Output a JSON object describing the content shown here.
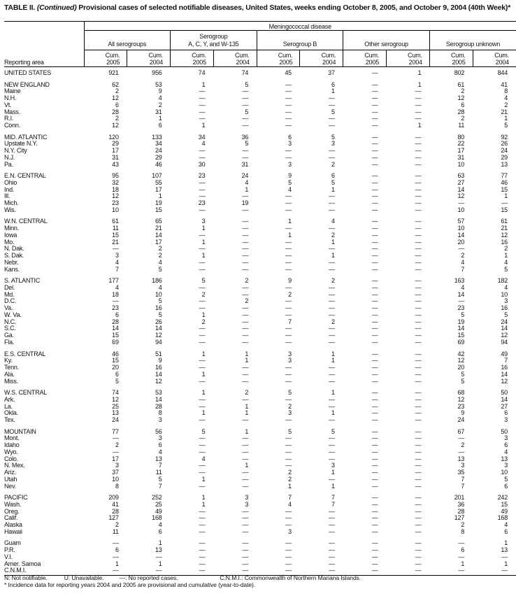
{
  "title": {
    "prefix": "TABLE II. ",
    "italic": "(Continued)",
    "text": " Provisional cases of selected notifiable diseases, United States, weeks ending October 8, 2005, and October 9, 2004 (40th Week)*"
  },
  "header": {
    "disease": "Meningococcal disease",
    "reporting_area": "Reporting area",
    "groups": [
      "All serogroups",
      "Serogroup A, C, Y, and W-135",
      "Serogroup B",
      "Other serogroup",
      "Serogroup unknown"
    ],
    "group_lines": [
      [
        "All serogroups"
      ],
      [
        "Serogroup",
        "A, C, Y, and W-135"
      ],
      [
        "Serogroup B"
      ],
      [
        "Other serogroup"
      ],
      [
        "Serogroup unknown"
      ]
    ],
    "cum_label": "Cum.",
    "years": [
      "2005",
      "2004"
    ]
  },
  "rows": [
    {
      "area": "UNITED STATES",
      "g": 1,
      "v": [
        "921",
        "956",
        "74",
        "74",
        "45",
        "37",
        "—",
        "1",
        "802",
        "844"
      ]
    },
    {
      "area": "NEW ENGLAND",
      "g": 1,
      "v": [
        "62",
        "53",
        "1",
        "5",
        "—",
        "6",
        "—",
        "1",
        "61",
        "41"
      ]
    },
    {
      "area": "Maine",
      "v": [
        "2",
        "9",
        "—",
        "—",
        "—",
        "1",
        "—",
        "—",
        "2",
        "8"
      ]
    },
    {
      "area": "N.H.",
      "v": [
        "12",
        "4",
        "—",
        "—",
        "—",
        "—",
        "—",
        "—",
        "12",
        "4"
      ]
    },
    {
      "area": "Vt.",
      "v": [
        "6",
        "2",
        "—",
        "—",
        "—",
        "—",
        "—",
        "—",
        "6",
        "2"
      ]
    },
    {
      "area": "Mass.",
      "v": [
        "28",
        "31",
        "—",
        "5",
        "—",
        "5",
        "—",
        "—",
        "28",
        "21"
      ]
    },
    {
      "area": "R.I.",
      "v": [
        "2",
        "1",
        "—",
        "—",
        "—",
        "—",
        "—",
        "—",
        "2",
        "1"
      ]
    },
    {
      "area": "Conn.",
      "v": [
        "12",
        "6",
        "1",
        "—",
        "—",
        "—",
        "—",
        "1",
        "11",
        "5"
      ]
    },
    {
      "area": "MID. ATLANTIC",
      "g": 1,
      "v": [
        "120",
        "133",
        "34",
        "36",
        "6",
        "5",
        "—",
        "—",
        "80",
        "92"
      ]
    },
    {
      "area": "Upstate N.Y.",
      "v": [
        "29",
        "34",
        "4",
        "5",
        "3",
        "3",
        "—",
        "—",
        "22",
        "26"
      ]
    },
    {
      "area": "N.Y. City",
      "v": [
        "17",
        "24",
        "—",
        "—",
        "—",
        "—",
        "—",
        "—",
        "17",
        "24"
      ]
    },
    {
      "area": "N.J.",
      "v": [
        "31",
        "29",
        "—",
        "—",
        "—",
        "—",
        "—",
        "—",
        "31",
        "29"
      ]
    },
    {
      "area": "Pa.",
      "v": [
        "43",
        "46",
        "30",
        "31",
        "3",
        "2",
        "—",
        "—",
        "10",
        "13"
      ]
    },
    {
      "area": "E.N. CENTRAL",
      "g": 1,
      "v": [
        "95",
        "107",
        "23",
        "24",
        "9",
        "6",
        "—",
        "—",
        "63",
        "77"
      ]
    },
    {
      "area": "Ohio",
      "v": [
        "32",
        "55",
        "—",
        "4",
        "5",
        "5",
        "—",
        "—",
        "27",
        "46"
      ]
    },
    {
      "area": "Ind.",
      "v": [
        "18",
        "17",
        "—",
        "1",
        "4",
        "1",
        "—",
        "—",
        "14",
        "15"
      ]
    },
    {
      "area": "Ill.",
      "v": [
        "12",
        "1",
        "—",
        "—",
        "—",
        "—",
        "—",
        "—",
        "12",
        "1"
      ]
    },
    {
      "area": "Mich.",
      "v": [
        "23",
        "19",
        "23",
        "19",
        "—",
        "—",
        "—",
        "—",
        "—",
        "—"
      ]
    },
    {
      "area": "Wis.",
      "v": [
        "10",
        "15",
        "—",
        "—",
        "—",
        "—",
        "—",
        "—",
        "10",
        "15"
      ]
    },
    {
      "area": "W.N. CENTRAL",
      "g": 1,
      "v": [
        "61",
        "65",
        "3",
        "—",
        "1",
        "4",
        "—",
        "—",
        "57",
        "61"
      ]
    },
    {
      "area": "Minn.",
      "v": [
        "11",
        "21",
        "1",
        "—",
        "—",
        "—",
        "—",
        "—",
        "10",
        "21"
      ]
    },
    {
      "area": "Iowa",
      "v": [
        "15",
        "14",
        "—",
        "—",
        "1",
        "2",
        "—",
        "—",
        "14",
        "12"
      ]
    },
    {
      "area": "Mo.",
      "v": [
        "21",
        "17",
        "1",
        "—",
        "—",
        "1",
        "—",
        "—",
        "20",
        "16"
      ]
    },
    {
      "area": "N. Dak.",
      "v": [
        "—",
        "2",
        "—",
        "—",
        "—",
        "—",
        "—",
        "—",
        "—",
        "2"
      ]
    },
    {
      "area": "S. Dak.",
      "v": [
        "3",
        "2",
        "1",
        "—",
        "—",
        "1",
        "—",
        "—",
        "2",
        "1"
      ]
    },
    {
      "area": "Nebr.",
      "v": [
        "4",
        "4",
        "—",
        "—",
        "—",
        "—",
        "—",
        "—",
        "4",
        "4"
      ]
    },
    {
      "area": "Kans.",
      "v": [
        "7",
        "5",
        "—",
        "—",
        "—",
        "—",
        "—",
        "—",
        "7",
        "5"
      ]
    },
    {
      "area": "S. ATLANTIC",
      "g": 1,
      "v": [
        "177",
        "186",
        "5",
        "2",
        "9",
        "2",
        "—",
        "—",
        "163",
        "182"
      ]
    },
    {
      "area": "Del.",
      "v": [
        "4",
        "4",
        "—",
        "—",
        "—",
        "—",
        "—",
        "—",
        "4",
        "4"
      ]
    },
    {
      "area": "Md.",
      "v": [
        "18",
        "10",
        "2",
        "—",
        "2",
        "—",
        "—",
        "—",
        "14",
        "10"
      ]
    },
    {
      "area": "D.C.",
      "v": [
        "—",
        "5",
        "—",
        "2",
        "—",
        "—",
        "—",
        "—",
        "—",
        "3"
      ]
    },
    {
      "area": "Va.",
      "v": [
        "23",
        "16",
        "—",
        "—",
        "—",
        "—",
        "—",
        "—",
        "23",
        "16"
      ]
    },
    {
      "area": "W. Va.",
      "v": [
        "6",
        "5",
        "1",
        "—",
        "—",
        "—",
        "—",
        "—",
        "5",
        "5"
      ]
    },
    {
      "area": "N.C.",
      "v": [
        "28",
        "26",
        "2",
        "—",
        "7",
        "2",
        "—",
        "—",
        "19",
        "24"
      ]
    },
    {
      "area": "S.C.",
      "v": [
        "14",
        "14",
        "—",
        "—",
        "—",
        "—",
        "—",
        "—",
        "14",
        "14"
      ]
    },
    {
      "area": "Ga.",
      "v": [
        "15",
        "12",
        "—",
        "—",
        "—",
        "—",
        "—",
        "—",
        "15",
        "12"
      ]
    },
    {
      "area": "Fla.",
      "v": [
        "69",
        "94",
        "—",
        "—",
        "—",
        "—",
        "—",
        "—",
        "69",
        "94"
      ]
    },
    {
      "area": "E.S. CENTRAL",
      "g": 1,
      "v": [
        "46",
        "51",
        "1",
        "1",
        "3",
        "1",
        "—",
        "—",
        "42",
        "49"
      ]
    },
    {
      "area": "Ky.",
      "v": [
        "15",
        "9",
        "—",
        "1",
        "3",
        "1",
        "—",
        "—",
        "12",
        "7"
      ]
    },
    {
      "area": "Tenn.",
      "v": [
        "20",
        "16",
        "—",
        "—",
        "—",
        "—",
        "—",
        "—",
        "20",
        "16"
      ]
    },
    {
      "area": "Ala.",
      "v": [
        "6",
        "14",
        "1",
        "—",
        "—",
        "—",
        "—",
        "—",
        "5",
        "14"
      ]
    },
    {
      "area": "Miss.",
      "v": [
        "5",
        "12",
        "—",
        "—",
        "—",
        "—",
        "—",
        "—",
        "5",
        "12"
      ]
    },
    {
      "area": "W.S. CENTRAL",
      "g": 1,
      "v": [
        "74",
        "53",
        "1",
        "2",
        "5",
        "1",
        "—",
        "—",
        "68",
        "50"
      ]
    },
    {
      "area": "Ark.",
      "v": [
        "12",
        "14",
        "—",
        "—",
        "—",
        "—",
        "—",
        "—",
        "12",
        "14"
      ]
    },
    {
      "area": "La.",
      "v": [
        "25",
        "28",
        "—",
        "1",
        "2",
        "—",
        "—",
        "—",
        "23",
        "27"
      ]
    },
    {
      "area": "Okla.",
      "v": [
        "13",
        "8",
        "1",
        "1",
        "3",
        "1",
        "—",
        "—",
        "9",
        "6"
      ]
    },
    {
      "area": "Tex.",
      "v": [
        "24",
        "3",
        "—",
        "—",
        "—",
        "—",
        "—",
        "—",
        "24",
        "3"
      ]
    },
    {
      "area": "MOUNTAIN",
      "g": 1,
      "v": [
        "77",
        "56",
        "5",
        "1",
        "5",
        "5",
        "—",
        "—",
        "67",
        "50"
      ]
    },
    {
      "area": "Mont.",
      "v": [
        "—",
        "3",
        "—",
        "—",
        "—",
        "—",
        "—",
        "—",
        "—",
        "3"
      ]
    },
    {
      "area": "Idaho",
      "v": [
        "2",
        "6",
        "—",
        "—",
        "—",
        "—",
        "—",
        "—",
        "2",
        "6"
      ]
    },
    {
      "area": "Wyo.",
      "v": [
        "—",
        "4",
        "—",
        "—",
        "—",
        "—",
        "—",
        "—",
        "—",
        "4"
      ]
    },
    {
      "area": "Colo.",
      "v": [
        "17",
        "13",
        "4",
        "—",
        "—",
        "—",
        "—",
        "—",
        "13",
        "13"
      ]
    },
    {
      "area": "N. Mex.",
      "v": [
        "3",
        "7",
        "—",
        "1",
        "—",
        "3",
        "—",
        "—",
        "3",
        "3"
      ]
    },
    {
      "area": "Ariz.",
      "v": [
        "37",
        "11",
        "—",
        "—",
        "2",
        "1",
        "—",
        "—",
        "35",
        "10"
      ]
    },
    {
      "area": "Utah",
      "v": [
        "10",
        "5",
        "1",
        "—",
        "2",
        "—",
        "—",
        "—",
        "7",
        "5"
      ]
    },
    {
      "area": "Nev.",
      "v": [
        "8",
        "7",
        "—",
        "—",
        "1",
        "1",
        "—",
        "—",
        "7",
        "6"
      ]
    },
    {
      "area": "PACIFIC",
      "g": 1,
      "v": [
        "209",
        "252",
        "1",
        "3",
        "7",
        "7",
        "—",
        "—",
        "201",
        "242"
      ]
    },
    {
      "area": "Wash.",
      "v": [
        "41",
        "25",
        "1",
        "3",
        "4",
        "7",
        "—",
        "—",
        "36",
        "15"
      ]
    },
    {
      "area": "Oreg.",
      "v": [
        "28",
        "49",
        "—",
        "—",
        "—",
        "—",
        "—",
        "—",
        "28",
        "49"
      ]
    },
    {
      "area": "Calif.",
      "v": [
        "127",
        "168",
        "—",
        "—",
        "—",
        "—",
        "—",
        "—",
        "127",
        "168"
      ]
    },
    {
      "area": "Alaska",
      "v": [
        "2",
        "4",
        "—",
        "—",
        "—",
        "—",
        "—",
        "—",
        "2",
        "4"
      ]
    },
    {
      "area": "Hawaii",
      "v": [
        "11",
        "6",
        "—",
        "—",
        "3",
        "—",
        "—",
        "—",
        "8",
        "6"
      ]
    },
    {
      "area": "Guam",
      "g": 1,
      "v": [
        "—",
        "1",
        "—",
        "—",
        "—",
        "—",
        "—",
        "—",
        "—",
        "1"
      ]
    },
    {
      "area": "P.R.",
      "v": [
        "6",
        "13",
        "—",
        "—",
        "—",
        "—",
        "—",
        "—",
        "6",
        "13"
      ]
    },
    {
      "area": "V.I.",
      "v": [
        "—",
        "—",
        "—",
        "—",
        "—",
        "—",
        "—",
        "—",
        "—",
        "—"
      ]
    },
    {
      "area": "Amer. Samoa",
      "v": [
        "1",
        "1",
        "—",
        "—",
        "—",
        "—",
        "—",
        "—",
        "1",
        "1"
      ]
    },
    {
      "area": "C.N.M.I.",
      "v": [
        "—",
        "—",
        "—",
        "—",
        "—",
        "—",
        "—",
        "—",
        "—",
        "—"
      ]
    }
  ],
  "footer": {
    "legend": [
      "N: Not notifiable.",
      "U: Unavailable.",
      "—: No reported cases.",
      "C.N.M.I.: Commonwealth of Northern Mariana Islands."
    ],
    "note": "* Incidence data for reporting years 2004 and 2005 are provisional and cumulative (year-to-date)."
  }
}
